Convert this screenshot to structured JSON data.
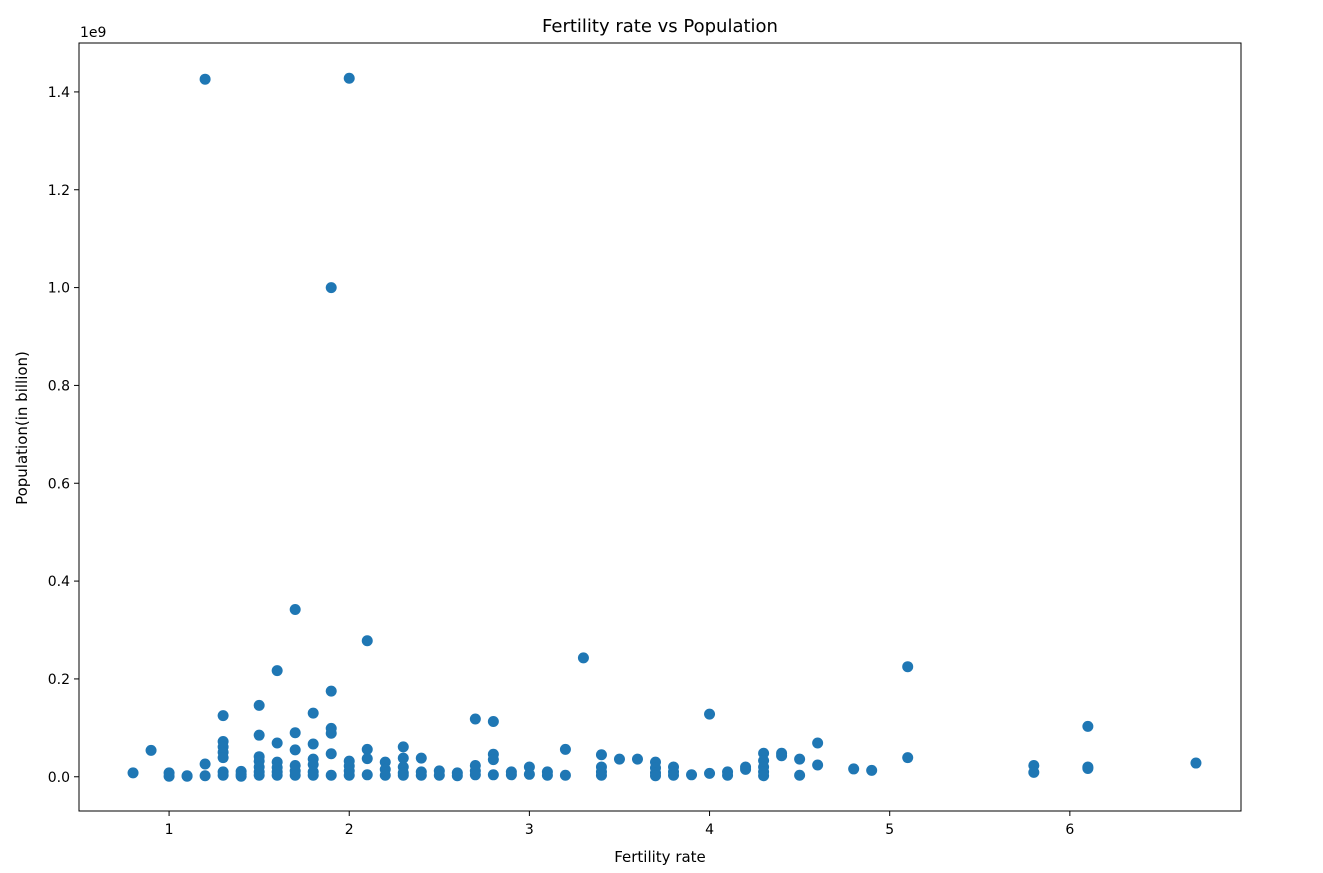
{
  "chart_data": {
    "type": "scatter",
    "title": "Fertility rate vs Population",
    "xlabel": "Fertility rate",
    "ylabel": "Population(in billion)",
    "offset_label": "1e9",
    "xlim": [
      0.5,
      6.95
    ],
    "ylim": [
      -0.07,
      1.5
    ],
    "x_ticks": [
      1,
      2,
      3,
      4,
      5,
      6
    ],
    "x_tick_labels": [
      "1",
      "2",
      "3",
      "4",
      "5",
      "6"
    ],
    "y_ticks": [
      0.0,
      0.2,
      0.4,
      0.6,
      0.8,
      1.0,
      1.2,
      1.4
    ],
    "y_tick_labels": [
      "0.0",
      "0.2",
      "0.4",
      "0.6",
      "0.8",
      "1.0",
      "1.2",
      "1.4"
    ],
    "grid": false,
    "marker_color": "#1f77b4",
    "points": [
      [
        0.8,
        0.008
      ],
      [
        0.9,
        0.054
      ],
      [
        1.0,
        0.008
      ],
      [
        1.0,
        0.001
      ],
      [
        1.1,
        0.001
      ],
      [
        1.1,
        0.002
      ],
      [
        1.2,
        1.426
      ],
      [
        1.2,
        0.026
      ],
      [
        1.2,
        0.002
      ],
      [
        1.3,
        0.125
      ],
      [
        1.3,
        0.072
      ],
      [
        1.3,
        0.061
      ],
      [
        1.3,
        0.05
      ],
      [
        1.3,
        0.039
      ],
      [
        1.3,
        0.01
      ],
      [
        1.3,
        0.003
      ],
      [
        1.4,
        0.011
      ],
      [
        1.4,
        0.005
      ],
      [
        1.4,
        0.001
      ],
      [
        1.5,
        0.146
      ],
      [
        1.5,
        0.085
      ],
      [
        1.5,
        0.041
      ],
      [
        1.5,
        0.032
      ],
      [
        1.5,
        0.02
      ],
      [
        1.5,
        0.01
      ],
      [
        1.5,
        0.003
      ],
      [
        1.6,
        0.217
      ],
      [
        1.6,
        0.069
      ],
      [
        1.6,
        0.03
      ],
      [
        1.6,
        0.019
      ],
      [
        1.6,
        0.01
      ],
      [
        1.6,
        0.003
      ],
      [
        1.7,
        0.342
      ],
      [
        1.7,
        0.09
      ],
      [
        1.7,
        0.055
      ],
      [
        1.7,
        0.023
      ],
      [
        1.7,
        0.012
      ],
      [
        1.7,
        0.003
      ],
      [
        1.8,
        0.13
      ],
      [
        1.8,
        0.067
      ],
      [
        1.8,
        0.036
      ],
      [
        1.8,
        0.025
      ],
      [
        1.8,
        0.01
      ],
      [
        1.8,
        0.003
      ],
      [
        1.9,
        1.0
      ],
      [
        1.9,
        0.175
      ],
      [
        1.9,
        0.099
      ],
      [
        1.9,
        0.089
      ],
      [
        1.9,
        0.047
      ],
      [
        1.9,
        0.003
      ],
      [
        2.0,
        1.428
      ],
      [
        2.0,
        0.032
      ],
      [
        2.0,
        0.022
      ],
      [
        2.0,
        0.012
      ],
      [
        2.0,
        0.003
      ],
      [
        2.1,
        0.278
      ],
      [
        2.1,
        0.056
      ],
      [
        2.1,
        0.037
      ],
      [
        2.1,
        0.004
      ],
      [
        2.2,
        0.03
      ],
      [
        2.2,
        0.015
      ],
      [
        2.2,
        0.003
      ],
      [
        2.3,
        0.061
      ],
      [
        2.3,
        0.038
      ],
      [
        2.3,
        0.02
      ],
      [
        2.3,
        0.008
      ],
      [
        2.3,
        0.003
      ],
      [
        2.4,
        0.038
      ],
      [
        2.4,
        0.01
      ],
      [
        2.4,
        0.003
      ],
      [
        2.5,
        0.012
      ],
      [
        2.5,
        0.003
      ],
      [
        2.6,
        0.008
      ],
      [
        2.6,
        0.002
      ],
      [
        2.7,
        0.118
      ],
      [
        2.7,
        0.023
      ],
      [
        2.7,
        0.012
      ],
      [
        2.7,
        0.004
      ],
      [
        2.8,
        0.113
      ],
      [
        2.8,
        0.046
      ],
      [
        2.8,
        0.035
      ],
      [
        2.8,
        0.004
      ],
      [
        2.9,
        0.01
      ],
      [
        2.9,
        0.004
      ],
      [
        3.0,
        0.02
      ],
      [
        3.0,
        0.005
      ],
      [
        3.1,
        0.01
      ],
      [
        3.1,
        0.003
      ],
      [
        3.2,
        0.056
      ],
      [
        3.2,
        0.003
      ],
      [
        3.3,
        0.243
      ],
      [
        3.4,
        0.045
      ],
      [
        3.4,
        0.02
      ],
      [
        3.4,
        0.01
      ],
      [
        3.4,
        0.003
      ],
      [
        3.5,
        0.036
      ],
      [
        3.6,
        0.036
      ],
      [
        3.7,
        0.03
      ],
      [
        3.7,
        0.018
      ],
      [
        3.7,
        0.008
      ],
      [
        3.7,
        0.002
      ],
      [
        3.8,
        0.02
      ],
      [
        3.8,
        0.01
      ],
      [
        3.8,
        0.003
      ],
      [
        3.9,
        0.004
      ],
      [
        4.0,
        0.128
      ],
      [
        4.0,
        0.007
      ],
      [
        4.1,
        0.01
      ],
      [
        4.1,
        0.003
      ],
      [
        4.2,
        0.02
      ],
      [
        4.2,
        0.015
      ],
      [
        4.3,
        0.048
      ],
      [
        4.3,
        0.033
      ],
      [
        4.3,
        0.02
      ],
      [
        4.3,
        0.01
      ],
      [
        4.3,
        0.002
      ],
      [
        4.4,
        0.048
      ],
      [
        4.4,
        0.043
      ],
      [
        4.5,
        0.036
      ],
      [
        4.5,
        0.003
      ],
      [
        4.6,
        0.069
      ],
      [
        4.6,
        0.024
      ],
      [
        4.8,
        0.016
      ],
      [
        4.9,
        0.013
      ],
      [
        5.1,
        0.225
      ],
      [
        5.1,
        0.039
      ],
      [
        5.8,
        0.023
      ],
      [
        5.8,
        0.009
      ],
      [
        6.1,
        0.103
      ],
      [
        6.1,
        0.02
      ],
      [
        6.1,
        0.017
      ],
      [
        6.7,
        0.028
      ]
    ]
  }
}
